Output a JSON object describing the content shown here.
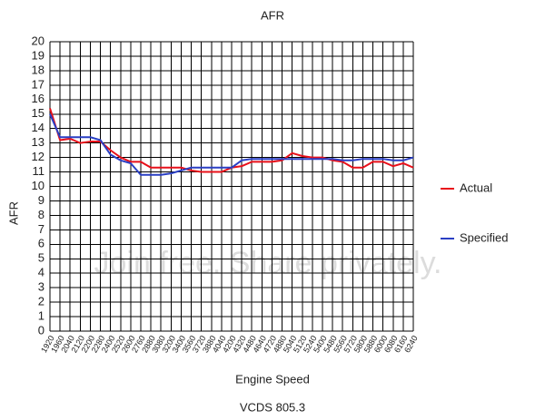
{
  "chart_data": {
    "type": "line",
    "title": "AFR",
    "xlabel": "Engine Speed",
    "ylabel": "AFR",
    "caption": "VCDS 805.3",
    "watermark": "Join free. Share privately.",
    "categories": [
      "1920",
      "1960",
      "2040",
      "2120",
      "2200",
      "2280",
      "2400",
      "2520",
      "2600",
      "2760",
      "2880",
      "3080",
      "3200",
      "3400",
      "3560",
      "3720",
      "3880",
      "4040",
      "4200",
      "4320",
      "4480",
      "4640",
      "4720",
      "4880",
      "5040",
      "5120",
      "5240",
      "5400",
      "5480",
      "5560",
      "5720",
      "5800",
      "5880",
      "6000",
      "6080",
      "6160",
      "6240"
    ],
    "series": [
      {
        "name": "Actual",
        "color": "#e8101a",
        "values": [
          15.4,
          13.2,
          13.3,
          13.0,
          13.1,
          13.1,
          12.5,
          12.0,
          11.7,
          11.7,
          11.3,
          11.3,
          11.3,
          11.3,
          11.1,
          11.0,
          11.0,
          11.0,
          11.3,
          11.4,
          11.7,
          11.7,
          11.7,
          11.8,
          12.3,
          12.1,
          12.0,
          12.0,
          11.8,
          11.7,
          11.3,
          11.3,
          11.7,
          11.7,
          11.4,
          11.6,
          11.3
        ]
      },
      {
        "name": "Specified",
        "color": "#2a3fc4",
        "values": [
          15.0,
          13.4,
          13.4,
          13.4,
          13.4,
          13.2,
          12.2,
          11.8,
          11.6,
          10.8,
          10.8,
          10.8,
          10.9,
          11.1,
          11.3,
          11.3,
          11.3,
          11.3,
          11.3,
          11.8,
          11.9,
          11.9,
          11.9,
          11.9,
          11.9,
          11.9,
          11.9,
          11.9,
          11.9,
          11.8,
          11.8,
          11.9,
          11.9,
          11.9,
          11.8,
          11.8,
          12.0
        ]
      }
    ],
    "ylim": [
      0,
      20
    ],
    "yticks": [
      0,
      1,
      2,
      3,
      4,
      5,
      6,
      7,
      8,
      9,
      10,
      11,
      12,
      13,
      14,
      15,
      16,
      17,
      18,
      19,
      20
    ],
    "grid": true,
    "legend": "right"
  }
}
